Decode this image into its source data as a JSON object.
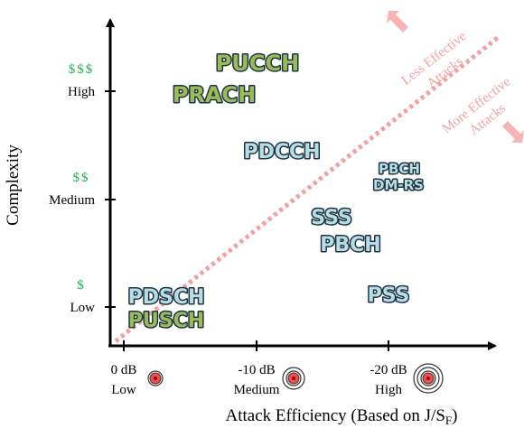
{
  "x_axis": {
    "label": "Attack Efficiency (Based on J/S",
    "label_sub": "F",
    "label_end": ")",
    "ticks": [
      {
        "value": "0 dB",
        "level": "Low"
      },
      {
        "value": "-10 dB",
        "level": "Medium"
      },
      {
        "value": "-20 dB",
        "level": "High"
      }
    ]
  },
  "y_axis": {
    "label": "Complexity",
    "ticks": [
      {
        "label": "High",
        "cost": "$$$"
      },
      {
        "label": "Medium",
        "cost": "$$"
      },
      {
        "label": "Low",
        "cost": "$"
      }
    ]
  },
  "items": [
    {
      "label": "PUCCH",
      "group": "uplink"
    },
    {
      "label": "PRACH",
      "group": "uplink"
    },
    {
      "label": "PDCCH",
      "group": "downlink"
    },
    {
      "label": "PBCH",
      "group": "downlink"
    },
    {
      "label": "DM-RS",
      "group": "downlink"
    },
    {
      "label": "SSS",
      "group": "downlink"
    },
    {
      "label": "PBCH",
      "group": "downlink"
    },
    {
      "label": "PSS",
      "group": "downlink"
    },
    {
      "label": "PDSCH",
      "group": "downlink"
    },
    {
      "label": "PUSCH",
      "group": "uplink"
    }
  ],
  "annotations": {
    "less": [
      "Less Effective",
      "Attacks"
    ],
    "more": [
      "More Effective",
      "Attacks"
    ]
  }
}
